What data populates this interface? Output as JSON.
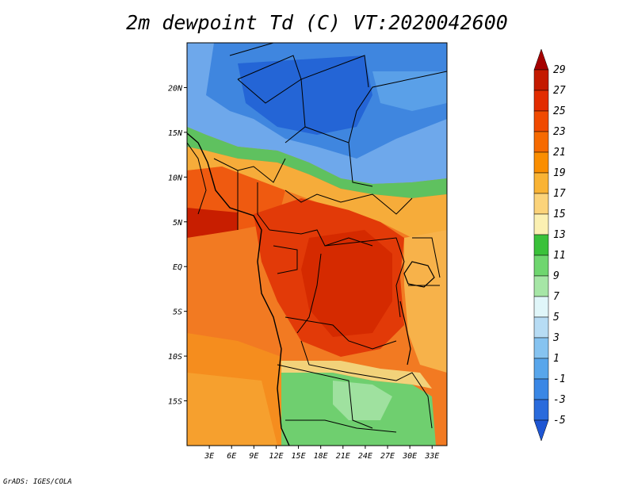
{
  "title": "2m dewpoint Td (C) VT:2020042600",
  "credit": "GrADS: IGES/COLA",
  "map": {
    "lon_range": [
      0,
      35
    ],
    "lat_range": [
      -20,
      25
    ],
    "lat_ticks": [
      {
        "value": 20,
        "label": "20N"
      },
      {
        "value": 15,
        "label": "15N"
      },
      {
        "value": 10,
        "label": "10N"
      },
      {
        "value": 5,
        "label": "5N"
      },
      {
        "value": 0,
        "label": "EQ"
      },
      {
        "value": -5,
        "label": "5S"
      },
      {
        "value": -10,
        "label": "10S"
      },
      {
        "value": -15,
        "label": "15S"
      }
    ],
    "lon_ticks": [
      {
        "value": 3,
        "label": "3E"
      },
      {
        "value": 6,
        "label": "6E"
      },
      {
        "value": 9,
        "label": "9E"
      },
      {
        "value": 12,
        "label": "12E"
      },
      {
        "value": 15,
        "label": "15E"
      },
      {
        "value": 18,
        "label": "18E"
      },
      {
        "value": 21,
        "label": "21E"
      },
      {
        "value": 24,
        "label": "24E"
      },
      {
        "value": 27,
        "label": "27E"
      },
      {
        "value": 30,
        "label": "30E"
      },
      {
        "value": 33,
        "label": "33E"
      }
    ]
  },
  "colorbar": {
    "labels": [
      "29",
      "27",
      "25",
      "23",
      "21",
      "19",
      "17",
      "15",
      "13",
      "11",
      "9",
      "7",
      "5",
      "3",
      "1",
      "-1",
      "-3",
      "-5"
    ],
    "colors_top_to_bottom": [
      "#a50000",
      "#c41a00",
      "#e22c00",
      "#f04a00",
      "#f66a00",
      "#fa8e00",
      "#f9b334",
      "#fbd37a",
      "#fbf0b2",
      "#3ac13a",
      "#6fd66f",
      "#a6e6a6",
      "#e0f6f9",
      "#b7dcf4",
      "#86c3f0",
      "#58a6eb",
      "#3a87e5",
      "#2a6bdc",
      "#1e56d3"
    ]
  }
}
